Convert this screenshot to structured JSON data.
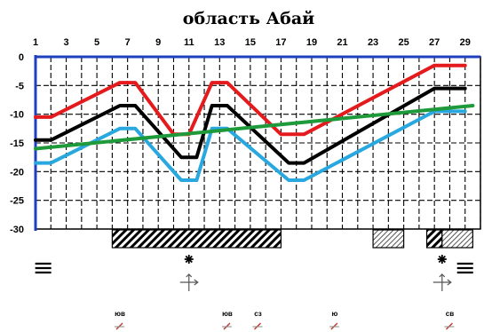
{
  "chart_data": {
    "type": "line",
    "title": "область Абай",
    "x_ticks": [
      "1",
      "3",
      "5",
      "7",
      "9",
      "11",
      "13",
      "15",
      "17",
      "19",
      "21",
      "23",
      "25",
      "27",
      "29"
    ],
    "y_ticks": [
      "0",
      "-5",
      "-10",
      "-15",
      "-20",
      "-25",
      "-30"
    ],
    "xlim": [
      1,
      30
    ],
    "ylim": [
      -30,
      0
    ],
    "grid": true,
    "series": [
      {
        "color": "#e41a1c",
        "x": [
          1,
          2,
          6.5,
          7.5,
          10,
          11,
          12.5,
          13.5,
          17,
          18.5,
          27,
          29
        ],
        "y": [
          -10.5,
          -10.5,
          -4.5,
          -4.5,
          -13.5,
          -13.5,
          -4.5,
          -4.5,
          -13.5,
          -13.5,
          -1.5,
          -1.5
        ]
      },
      {
        "color": "#000000",
        "x": [
          1,
          2,
          6.5,
          7.5,
          10.5,
          11.5,
          12.5,
          13.5,
          17.5,
          18.5,
          27,
          29
        ],
        "y": [
          -14.5,
          -14.5,
          -8.5,
          -8.5,
          -17.5,
          -17.5,
          -8.5,
          -8.5,
          -18.5,
          -18.5,
          -5.5,
          -5.5
        ]
      },
      {
        "color": "#29a8e0",
        "x": [
          1,
          2,
          6.5,
          7.5,
          10.5,
          11.5,
          12.5,
          13.5,
          17.5,
          18.5,
          27,
          29
        ],
        "y": [
          -18.5,
          -18.5,
          -12.5,
          -12.5,
          -21.5,
          -21.5,
          -12.5,
          -12.5,
          -21.5,
          -21.5,
          -9.5,
          -9.5
        ]
      },
      {
        "color": "#1f9a3a",
        "x": [
          1,
          29.5
        ],
        "y": [
          -16,
          -8.5
        ]
      }
    ],
    "precip_bars": [
      {
        "from": 6,
        "to": 17,
        "style": "dense"
      },
      {
        "from": 23,
        "to": 25,
        "style": "light"
      },
      {
        "from": 26.5,
        "to": 27.5,
        "style": "dense"
      },
      {
        "from": 27.5,
        "to": 29.5,
        "style": "light"
      }
    ],
    "symbols": [
      {
        "x": 1.5,
        "kind": "fog-icon"
      },
      {
        "x": 11,
        "kind": "snow-icon"
      },
      {
        "x": 11,
        "kind": "blizzard-icon"
      },
      {
        "x": 27.5,
        "kind": "snow-icon"
      },
      {
        "x": 27.5,
        "kind": "blizzard-icon"
      },
      {
        "x": 29,
        "kind": "fog-icon"
      }
    ],
    "wind": [
      {
        "x": 6.5,
        "label": "юв"
      },
      {
        "x": 13.5,
        "label": "юв"
      },
      {
        "x": 15.5,
        "label": "сз"
      },
      {
        "x": 20.5,
        "label": "ю"
      },
      {
        "x": 28,
        "label": "св"
      }
    ]
  }
}
